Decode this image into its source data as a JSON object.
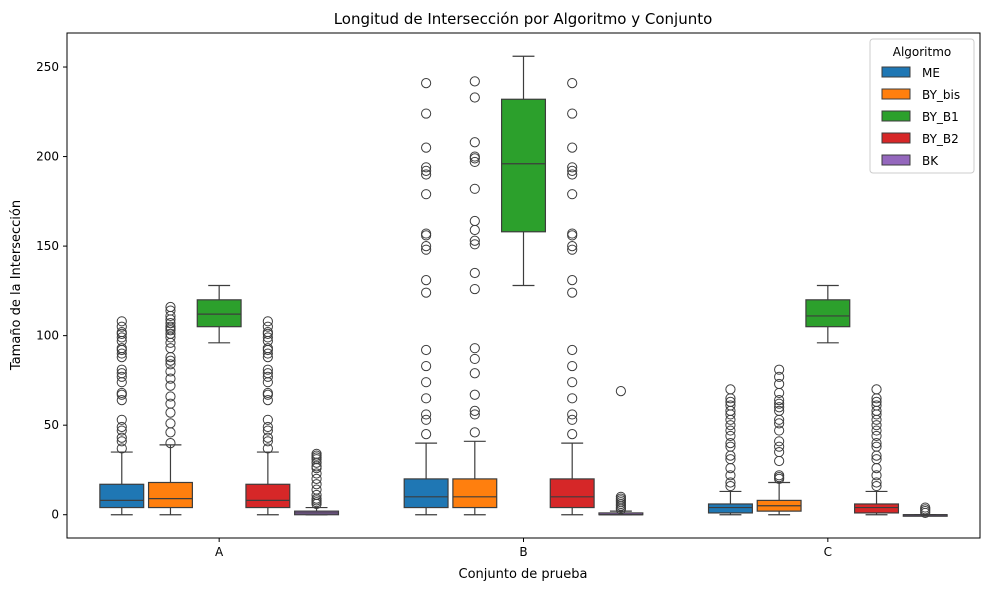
{
  "chart_data": {
    "type": "box",
    "title": "Longitud de Intersección por Algoritmo y Conjunto",
    "xlabel": "Conjunto de prueba",
    "ylabel": "Tamaño de la Intersección",
    "categories": [
      "A",
      "B",
      "C"
    ],
    "ylim": [
      -13,
      269
    ],
    "yticks": [
      0,
      50,
      100,
      150,
      200,
      250
    ],
    "grid": false,
    "legend": {
      "title": "Algoritmo",
      "placement": "top-right"
    },
    "series": [
      {
        "name": "ME",
        "color": "#1f77b4",
        "boxes": [
          {
            "category": "A",
            "whisker_low": 0,
            "q1": 4,
            "median": 8,
            "q3": 17,
            "whisker_high": 35,
            "outliers": [
              37,
              41,
              43,
              47,
              49,
              53,
              64,
              67,
              68,
              74,
              77,
              79,
              81,
              88,
              90,
              92,
              93,
              97,
              99,
              101,
              102,
              105,
              108
            ]
          },
          {
            "category": "B",
            "whisker_low": 0,
            "q1": 4,
            "median": 10,
            "q3": 20,
            "whisker_high": 40,
            "outliers": [
              45,
              53,
              56,
              65,
              74,
              83,
              92,
              124,
              131,
              148,
              150,
              156,
              157,
              179,
              190,
              192,
              194,
              205,
              224,
              241
            ]
          },
          {
            "category": "C",
            "whisker_low": 0,
            "q1": 1,
            "median": 4,
            "q3": 6,
            "whisker_high": 13,
            "outliers": [
              16,
              18,
              22,
              26,
              31,
              33,
              38,
              40,
              44,
              47,
              50,
              53,
              56,
              58,
              61,
              63,
              65,
              70
            ]
          }
        ]
      },
      {
        "name": "BY_bis",
        "color": "#ff7f0e",
        "boxes": [
          {
            "category": "A",
            "whisker_low": 0,
            "q1": 4,
            "median": 9,
            "q3": 18,
            "whisker_high": 39,
            "outliers": [
              40,
              46,
              51,
              57,
              62,
              66,
              72,
              76,
              80,
              84,
              86,
              88,
              93,
              96,
              99,
              101,
              103,
              104,
              105,
              107,
              109,
              111,
              114,
              116
            ]
          },
          {
            "category": "B",
            "whisker_low": 0,
            "q1": 4,
            "median": 10,
            "q3": 20,
            "whisker_high": 41,
            "outliers": [
              46,
              56,
              58,
              67,
              79,
              87,
              93,
              126,
              135,
              151,
              153,
              159,
              164,
              182,
              197,
              199,
              200,
              208,
              233,
              242
            ]
          },
          {
            "category": "C",
            "whisker_low": 0,
            "q1": 2,
            "median": 5,
            "q3": 8,
            "whisker_high": 18,
            "outliers": [
              20,
              21,
              22,
              30,
              35,
              38,
              41,
              47,
              51,
              53,
              58,
              60,
              62,
              64,
              68,
              73,
              77,
              81
            ]
          }
        ]
      },
      {
        "name": "BY_B1",
        "color": "#2ca02c",
        "boxes": [
          {
            "category": "A",
            "whisker_low": 96,
            "q1": 105,
            "median": 112,
            "q3": 120,
            "whisker_high": 128,
            "outliers": []
          },
          {
            "category": "B",
            "whisker_low": 128,
            "q1": 158,
            "median": 196,
            "q3": 232,
            "whisker_high": 256,
            "outliers": []
          },
          {
            "category": "C",
            "whisker_low": 96,
            "q1": 105,
            "median": 111,
            "q3": 120,
            "whisker_high": 128,
            "outliers": []
          }
        ]
      },
      {
        "name": "BY_B2",
        "color": "#d62728",
        "boxes": [
          {
            "category": "A",
            "whisker_low": 0,
            "q1": 4,
            "median": 8,
            "q3": 17,
            "whisker_high": 35,
            "outliers": [
              37,
              41,
              43,
              47,
              49,
              53,
              64,
              67,
              68,
              74,
              77,
              79,
              81,
              88,
              90,
              92,
              93,
              97,
              99,
              101,
              102,
              105,
              108
            ]
          },
          {
            "category": "B",
            "whisker_low": 0,
            "q1": 4,
            "median": 10,
            "q3": 20,
            "whisker_high": 40,
            "outliers": [
              45,
              53,
              56,
              65,
              74,
              83,
              92,
              124,
              131,
              148,
              150,
              156,
              157,
              179,
              190,
              192,
              194,
              205,
              224,
              241
            ]
          },
          {
            "category": "C",
            "whisker_low": 0,
            "q1": 1,
            "median": 4,
            "q3": 6,
            "whisker_high": 13,
            "outliers": [
              16,
              18,
              22,
              26,
              31,
              33,
              38,
              40,
              44,
              47,
              50,
              53,
              56,
              58,
              61,
              63,
              65,
              70
            ]
          }
        ]
      },
      {
        "name": "BK",
        "color": "#9467bd",
        "boxes": [
          {
            "category": "A",
            "whisker_low": 0,
            "q1": 0,
            "median": 1,
            "q3": 2,
            "whisker_high": 4,
            "outliers": [
              6,
              7,
              8,
              9,
              11,
              14,
              17,
              20,
              23,
              26,
              27,
              29,
              31,
              32,
              33,
              34
            ]
          },
          {
            "category": "B",
            "whisker_low": 0,
            "q1": 0,
            "median": 0,
            "q3": 1,
            "whisker_high": 2,
            "outliers": [
              3,
              4,
              5,
              6,
              7,
              8,
              9,
              10,
              69
            ]
          },
          {
            "category": "C",
            "whisker_low": 0,
            "q1": 0,
            "median": 0,
            "q3": 0,
            "whisker_high": 0,
            "outliers": [
              1,
              2,
              3,
              4
            ]
          }
        ]
      }
    ]
  }
}
